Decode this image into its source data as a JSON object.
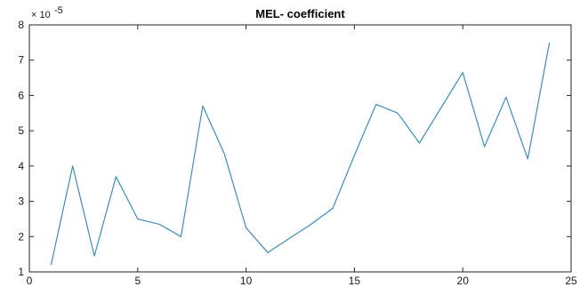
{
  "chart_data": {
    "type": "line",
    "title": "MEL- coefficient",
    "xlabel": "",
    "ylabel": "",
    "y_exponent_label": "× 10",
    "y_exponent": "-5",
    "xlim": [
      0,
      25
    ],
    "ylim": [
      1,
      8
    ],
    "x_ticks": [
      0,
      5,
      10,
      15,
      20,
      25
    ],
    "y_ticks": [
      1,
      2,
      3,
      4,
      5,
      6,
      7,
      8
    ],
    "grid": false,
    "series": [
      {
        "color": "#3a8fb7",
        "x": [
          1,
          2,
          3,
          4,
          5,
          6,
          7,
          8,
          9,
          10,
          11,
          12,
          13,
          14,
          15,
          16,
          17,
          18,
          19,
          20,
          21,
          22,
          23,
          24
        ],
        "y": [
          1.2,
          4.0,
          1.45,
          3.7,
          2.5,
          2.35,
          2.0,
          5.7,
          4.35,
          2.25,
          1.55,
          1.95,
          2.35,
          2.8,
          4.3,
          5.75,
          5.5,
          4.65,
          5.65,
          6.65,
          4.55,
          5.95,
          4.2,
          7.5
        ]
      }
    ]
  }
}
